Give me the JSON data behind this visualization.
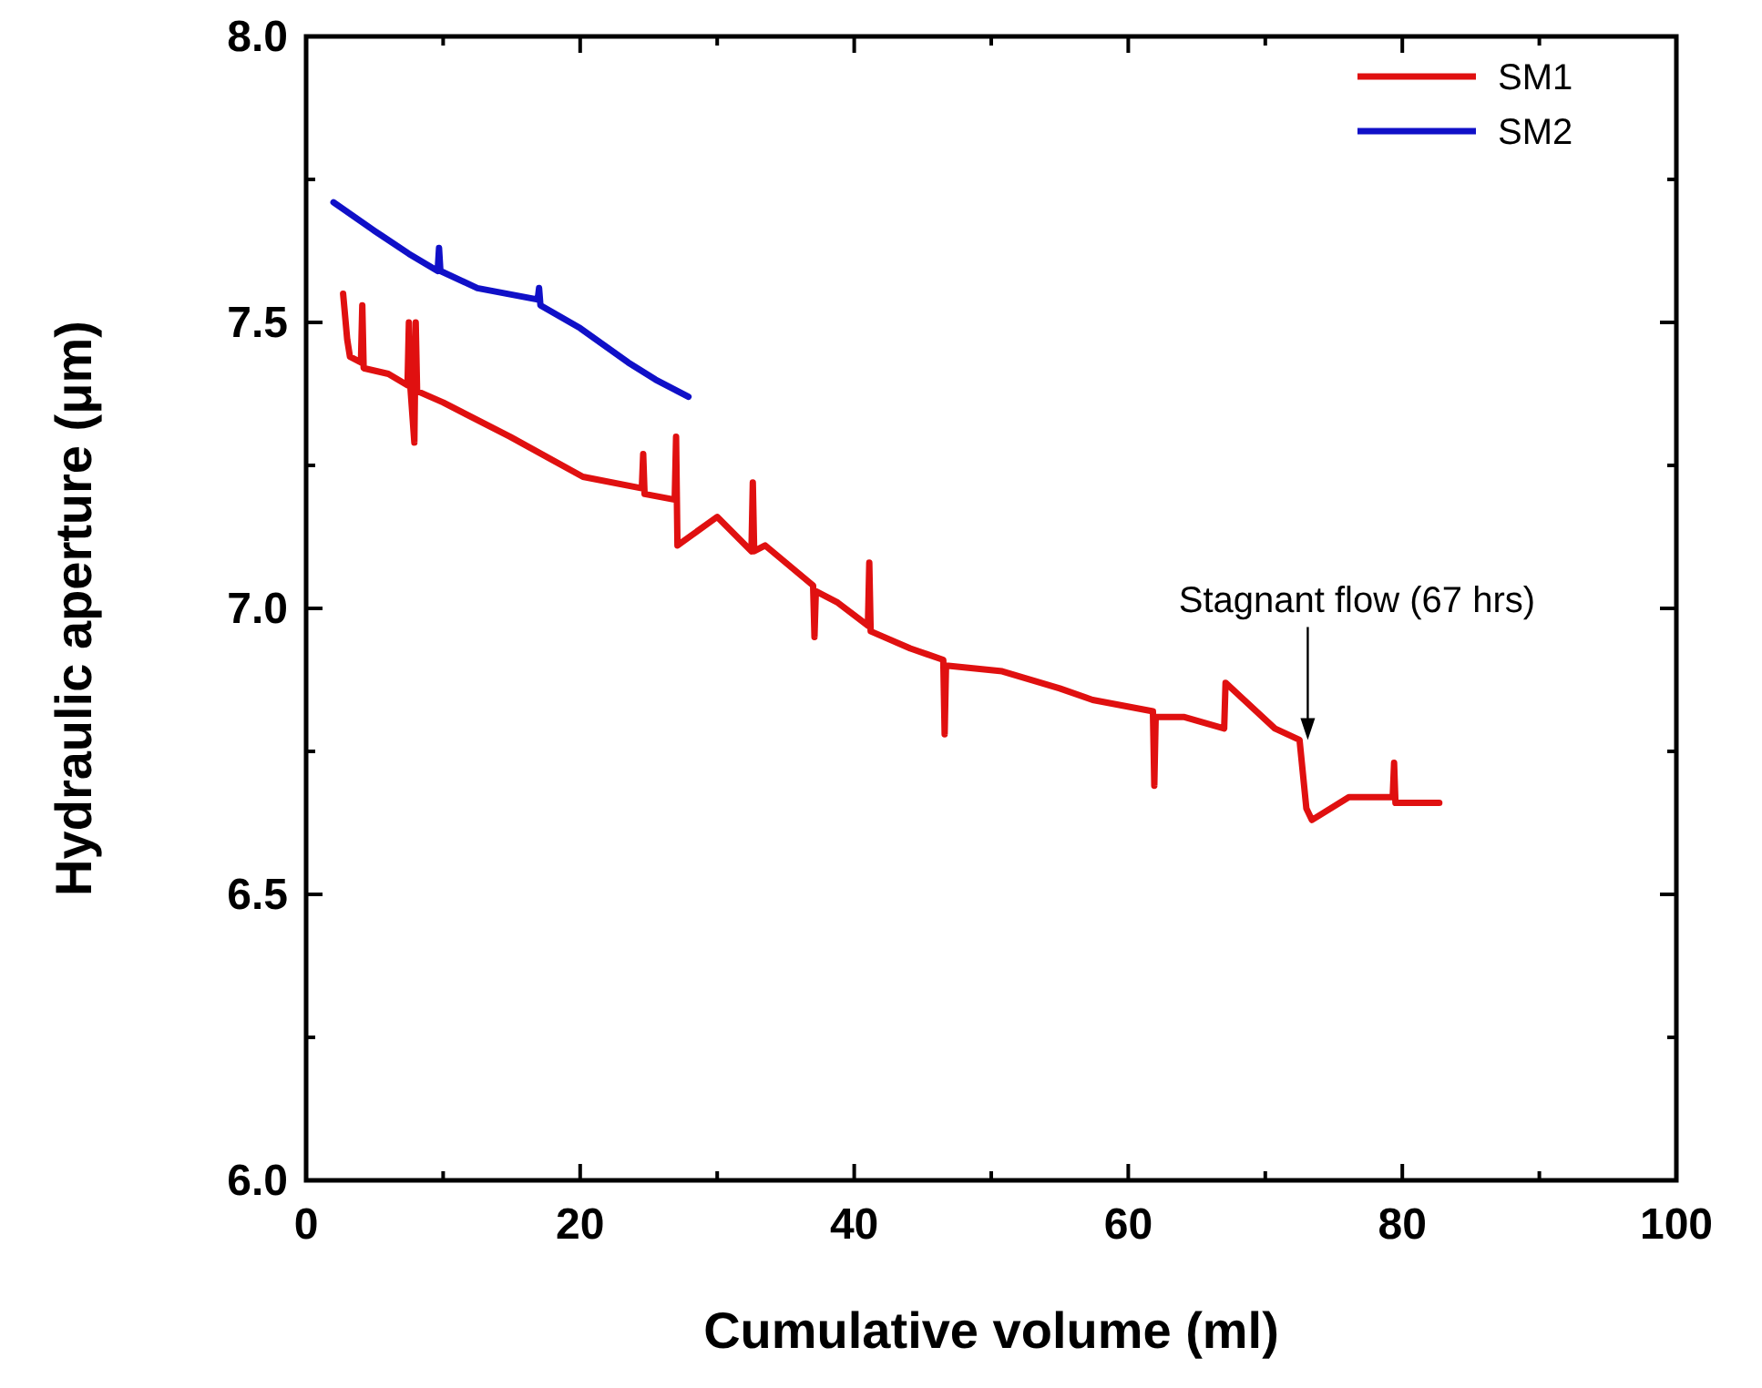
{
  "chart_data": {
    "type": "line",
    "xlabel": "Cumulative volume (ml)",
    "ylabel": "Hydraulic aperture (μm)",
    "xlim": [
      0,
      100
    ],
    "ylim": [
      6.0,
      8.0
    ],
    "xticks": [
      0,
      20,
      40,
      60,
      80,
      100
    ],
    "yticks": [
      {
        "value": 6.0,
        "label": "6.0"
      },
      {
        "value": 6.5,
        "label": "6.5"
      },
      {
        "value": 7.0,
        "label": "7.0"
      },
      {
        "value": 7.5,
        "label": "7.5"
      },
      {
        "value": 8.0,
        "label": "8.0"
      }
    ],
    "grid": false,
    "legend": "top right",
    "line_style": "solid",
    "series": [
      {
        "name": "SM1",
        "color": "#e01010",
        "x": [
          2.7,
          3.0,
          3.2,
          4.0,
          4.1,
          4.2,
          6.0,
          7.4,
          7.5,
          7.6,
          7.9,
          8.0,
          8.1,
          10,
          14.9,
          20.2,
          24.5,
          24.6,
          24.7,
          26.9,
          27.0,
          27.1,
          30,
          32.5,
          32.6,
          32.7,
          33.5,
          37,
          37.1,
          37.2,
          38.8,
          41,
          41.1,
          41.2,
          44.1,
          46.5,
          46.6,
          46.7,
          50.8,
          55,
          57.4,
          61.8,
          61.9,
          62.0,
          64.1,
          67,
          67.1,
          70.7,
          72.5,
          73.0,
          73.4,
          76.1,
          79.3,
          79.4,
          79.5,
          82.7
        ],
        "values": [
          7.55,
          7.47,
          7.44,
          7.43,
          7.53,
          7.42,
          7.41,
          7.39,
          7.5,
          7.39,
          7.29,
          7.5,
          7.38,
          7.36,
          7.3,
          7.23,
          7.21,
          7.27,
          7.2,
          7.19,
          7.3,
          7.11,
          7.16,
          7.1,
          7.22,
          7.1,
          7.11,
          7.04,
          6.95,
          7.03,
          7.01,
          6.97,
          7.08,
          6.96,
          6.93,
          6.91,
          6.78,
          6.9,
          6.89,
          6.86,
          6.84,
          6.82,
          6.69,
          6.81,
          6.81,
          6.79,
          6.87,
          6.79,
          6.77,
          6.65,
          6.63,
          6.67,
          6.67,
          6.73,
          6.66,
          6.66
        ]
      },
      {
        "name": "SM2",
        "color": "#1010c8",
        "x": [
          2.0,
          5,
          7.5,
          9.6,
          9.7,
          9.8,
          12.5,
          16.9,
          17.0,
          17.1,
          20,
          23.5,
          25.5,
          27.9
        ],
        "values": [
          7.71,
          7.66,
          7.62,
          7.59,
          7.63,
          7.59,
          7.56,
          7.54,
          7.56,
          7.53,
          7.49,
          7.43,
          7.4,
          7.37
        ]
      }
    ],
    "annotations": [
      "Stagnant flow (67 hrs)"
    ]
  }
}
